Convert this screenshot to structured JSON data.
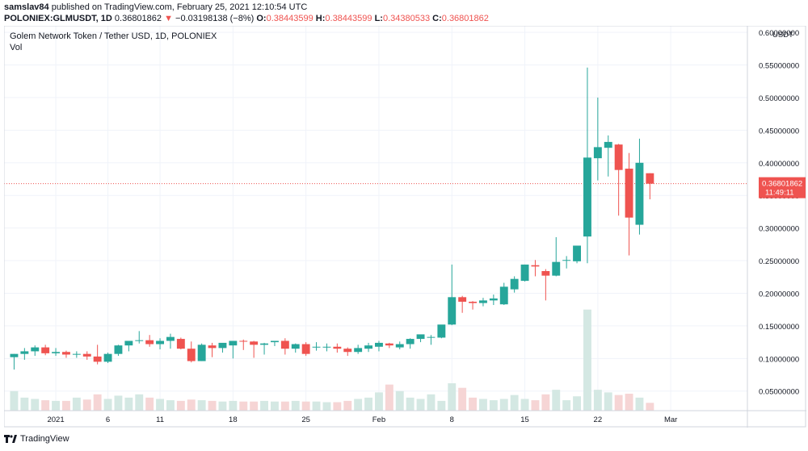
{
  "header": {
    "publisher": "samslav84",
    "published_text": "published on TradingView.com, February 25, 2021 12:10:54 UTC",
    "symbol": "POLONIEX:GLMUSDT, 1D",
    "last": "0.36801862",
    "arrow": "▼",
    "change": "−0.03198138 (−8%)",
    "o_label": "O:",
    "o": "0.38443599",
    "h_label": "H:",
    "h": "0.38443599",
    "l_label": "L:",
    "l": "0.34380533",
    "c_label": "C:",
    "c": "0.36801862"
  },
  "legend": {
    "title": "Golem Network Token / Tether USD, 1D, POLONIEX",
    "vol": "Vol"
  },
  "price_axis": {
    "currency": "USDT",
    "ticks": [
      "0.05000000",
      "0.10000000",
      "0.15000000",
      "0.20000000",
      "0.25000000",
      "0.30000000",
      "0.35000000",
      "0.40000000",
      "0.45000000",
      "0.50000000",
      "0.55000000",
      "0.60000000"
    ],
    "last_price": "0.36801862",
    "countdown": "11:49:11"
  },
  "time_axis": {
    "ticks": [
      {
        "label": "2021",
        "idx": 4
      },
      {
        "label": "6",
        "idx": 9
      },
      {
        "label": "11",
        "idx": 14
      },
      {
        "label": "18",
        "idx": 21
      },
      {
        "label": "25",
        "idx": 28
      },
      {
        "label": "Feb",
        "idx": 35
      },
      {
        "label": "8",
        "idx": 42
      },
      {
        "label": "15",
        "idx": 49
      },
      {
        "label": "22",
        "idx": 56
      },
      {
        "label": "Mar",
        "idx": 63
      }
    ]
  },
  "colors": {
    "up": "#26a69a",
    "down": "#ef5350",
    "up_vol": "#d4e8e3",
    "down_vol": "#f6d5d5",
    "grid": "#f0f3fa",
    "last_line": "#ef5350"
  },
  "footer": {
    "brand": "TradingView"
  },
  "chart_data": {
    "type": "candlestick",
    "title": "Golem Network Token / Tether USD, 1D, POLONIEX",
    "x_start": "2020-12-28",
    "y_unit": "USDT",
    "ylim": [
      0.02,
      0.61
    ],
    "candles": [
      {
        "o": 0.102,
        "h": 0.107,
        "l": 0.083,
        "c": 0.107
      },
      {
        "o": 0.107,
        "h": 0.116,
        "l": 0.098,
        "c": 0.111
      },
      {
        "o": 0.111,
        "h": 0.12,
        "l": 0.104,
        "c": 0.117
      },
      {
        "o": 0.117,
        "h": 0.121,
        "l": 0.105,
        "c": 0.108
      },
      {
        "o": 0.108,
        "h": 0.116,
        "l": 0.104,
        "c": 0.11
      },
      {
        "o": 0.11,
        "h": 0.112,
        "l": 0.101,
        "c": 0.106
      },
      {
        "o": 0.106,
        "h": 0.111,
        "l": 0.101,
        "c": 0.107
      },
      {
        "o": 0.107,
        "h": 0.111,
        "l": 0.098,
        "c": 0.103
      },
      {
        "o": 0.103,
        "h": 0.121,
        "l": 0.091,
        "c": 0.095
      },
      {
        "o": 0.095,
        "h": 0.109,
        "l": 0.093,
        "c": 0.107
      },
      {
        "o": 0.107,
        "h": 0.121,
        "l": 0.104,
        "c": 0.12
      },
      {
        "o": 0.12,
        "h": 0.127,
        "l": 0.111,
        "c": 0.127
      },
      {
        "o": 0.127,
        "h": 0.142,
        "l": 0.123,
        "c": 0.128
      },
      {
        "o": 0.128,
        "h": 0.136,
        "l": 0.118,
        "c": 0.122
      },
      {
        "o": 0.122,
        "h": 0.131,
        "l": 0.114,
        "c": 0.127
      },
      {
        "o": 0.127,
        "h": 0.138,
        "l": 0.115,
        "c": 0.133
      },
      {
        "o": 0.13,
        "h": 0.132,
        "l": 0.114,
        "c": 0.115
      },
      {
        "o": 0.115,
        "h": 0.126,
        "l": 0.094,
        "c": 0.096
      },
      {
        "o": 0.096,
        "h": 0.123,
        "l": 0.096,
        "c": 0.121
      },
      {
        "o": 0.12,
        "h": 0.124,
        "l": 0.102,
        "c": 0.116
      },
      {
        "o": 0.116,
        "h": 0.122,
        "l": 0.109,
        "c": 0.124
      },
      {
        "o": 0.12,
        "h": 0.127,
        "l": 0.1,
        "c": 0.127
      },
      {
        "o": 0.127,
        "h": 0.129,
        "l": 0.113,
        "c": 0.126
      },
      {
        "o": 0.126,
        "h": 0.127,
        "l": 0.101,
        "c": 0.121
      },
      {
        "o": 0.121,
        "h": 0.124,
        "l": 0.106,
        "c": 0.123
      },
      {
        "o": 0.125,
        "h": 0.127,
        "l": 0.119,
        "c": 0.127
      },
      {
        "o": 0.127,
        "h": 0.131,
        "l": 0.106,
        "c": 0.115
      },
      {
        "o": 0.115,
        "h": 0.123,
        "l": 0.109,
        "c": 0.122
      },
      {
        "o": 0.122,
        "h": 0.125,
        "l": 0.104,
        "c": 0.107
      },
      {
        "o": 0.118,
        "h": 0.125,
        "l": 0.112,
        "c": 0.118
      },
      {
        "o": 0.117,
        "h": 0.123,
        "l": 0.111,
        "c": 0.118
      },
      {
        "o": 0.118,
        "h": 0.123,
        "l": 0.109,
        "c": 0.115
      },
      {
        "o": 0.115,
        "h": 0.117,
        "l": 0.104,
        "c": 0.11
      },
      {
        "o": 0.11,
        "h": 0.121,
        "l": 0.107,
        "c": 0.116
      },
      {
        "o": 0.115,
        "h": 0.124,
        "l": 0.11,
        "c": 0.12
      },
      {
        "o": 0.118,
        "h": 0.127,
        "l": 0.111,
        "c": 0.124
      },
      {
        "o": 0.123,
        "h": 0.124,
        "l": 0.116,
        "c": 0.12
      },
      {
        "o": 0.117,
        "h": 0.126,
        "l": 0.114,
        "c": 0.122
      },
      {
        "o": 0.122,
        "h": 0.131,
        "l": 0.115,
        "c": 0.13
      },
      {
        "o": 0.13,
        "h": 0.136,
        "l": 0.125,
        "c": 0.137
      },
      {
        "o": 0.133,
        "h": 0.136,
        "l": 0.121,
        "c": 0.133
      },
      {
        "o": 0.132,
        "h": 0.148,
        "l": 0.131,
        "c": 0.152
      },
      {
        "o": 0.152,
        "h": 0.244,
        "l": 0.151,
        "c": 0.194
      },
      {
        "o": 0.194,
        "h": 0.196,
        "l": 0.17,
        "c": 0.187
      },
      {
        "o": 0.187,
        "h": 0.188,
        "l": 0.175,
        "c": 0.185
      },
      {
        "o": 0.185,
        "h": 0.193,
        "l": 0.18,
        "c": 0.189
      },
      {
        "o": 0.189,
        "h": 0.198,
        "l": 0.182,
        "c": 0.192
      },
      {
        "o": 0.183,
        "h": 0.216,
        "l": 0.182,
        "c": 0.21
      },
      {
        "o": 0.206,
        "h": 0.226,
        "l": 0.201,
        "c": 0.222
      },
      {
        "o": 0.219,
        "h": 0.244,
        "l": 0.218,
        "c": 0.244
      },
      {
        "o": 0.243,
        "h": 0.251,
        "l": 0.226,
        "c": 0.241
      },
      {
        "o": 0.234,
        "h": 0.237,
        "l": 0.189,
        "c": 0.227
      },
      {
        "o": 0.227,
        "h": 0.286,
        "l": 0.226,
        "c": 0.248
      },
      {
        "o": 0.25,
        "h": 0.257,
        "l": 0.238,
        "c": 0.251
      },
      {
        "o": 0.249,
        "h": 0.272,
        "l": 0.246,
        "c": 0.273
      },
      {
        "o": 0.287,
        "h": 0.546,
        "l": 0.246,
        "c": 0.408
      },
      {
        "o": 0.407,
        "h": 0.5,
        "l": 0.373,
        "c": 0.424
      },
      {
        "o": 0.423,
        "h": 0.442,
        "l": 0.379,
        "c": 0.432
      },
      {
        "o": 0.428,
        "h": 0.429,
        "l": 0.319,
        "c": 0.389
      },
      {
        "o": 0.391,
        "h": 0.415,
        "l": 0.258,
        "c": 0.316
      },
      {
        "o": 0.305,
        "h": 0.437,
        "l": 0.29,
        "c": 0.4
      },
      {
        "o": 0.384,
        "h": 0.384,
        "l": 0.344,
        "c": 0.368
      }
    ],
    "volume": [
      0.05,
      0.04,
      0.038,
      0.036,
      0.035,
      0.035,
      0.04,
      0.037,
      0.045,
      0.038,
      0.043,
      0.04,
      0.045,
      0.04,
      0.038,
      0.036,
      0.035,
      0.037,
      0.036,
      0.035,
      0.034,
      0.035,
      0.034,
      0.034,
      0.035,
      0.034,
      0.034,
      0.035,
      0.034,
      0.034,
      0.033,
      0.033,
      0.035,
      0.038,
      0.04,
      0.048,
      0.06,
      0.05,
      0.04,
      0.038,
      0.045,
      0.035,
      0.062,
      0.055,
      0.04,
      0.038,
      0.036,
      0.038,
      0.044,
      0.038,
      0.036,
      0.045,
      0.052,
      0.036,
      0.042,
      0.175,
      0.052,
      0.048,
      0.044,
      0.046,
      0.04,
      0.032
    ]
  }
}
